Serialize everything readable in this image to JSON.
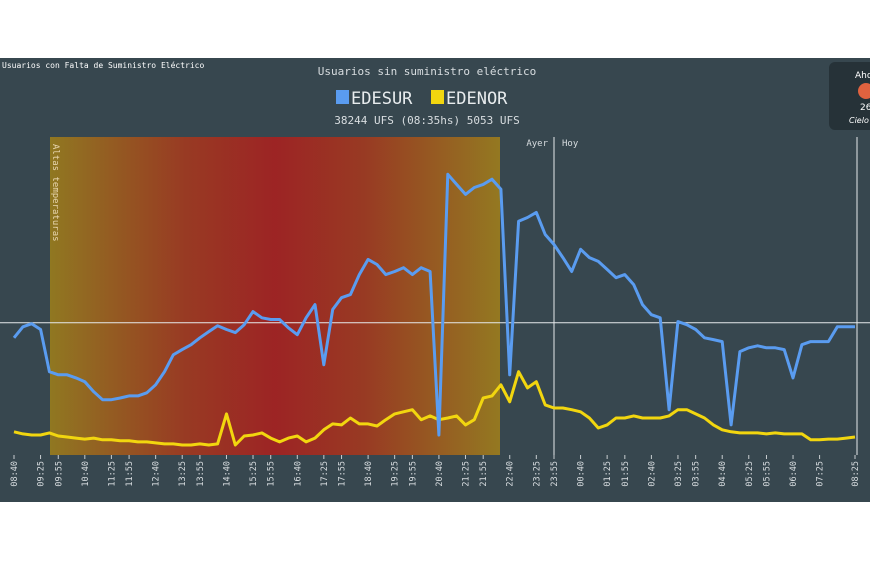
{
  "header": "Usuarios con Falta de Suministro Eléctrico",
  "widget": {
    "label": "Aho",
    "temperature": "26",
    "condition": "Cielo"
  },
  "chart_data": {
    "type": "line",
    "title": "Usuarios sin suministro eléctrico",
    "subtitle": "38244 UFS (08:35hs) 5053 UFS",
    "annotations": {
      "shaded": "Altas temperaturas",
      "before": "Ayer",
      "after": "Hoy"
    },
    "reference_line": 38244,
    "categories": [
      "08:40",
      null,
      null,
      "09:25",
      null,
      "09:55",
      null,
      null,
      "10:40",
      null,
      null,
      "11:25",
      null,
      "11:55",
      null,
      null,
      "12:40",
      null,
      null,
      "13:25",
      null,
      "13:55",
      null,
      null,
      "14:40",
      null,
      null,
      "15:25",
      null,
      "15:55",
      null,
      null,
      "16:40",
      null,
      null,
      "17:25",
      null,
      "17:55",
      null,
      null,
      "18:40",
      null,
      null,
      "19:25",
      null,
      "19:55",
      null,
      null,
      "20:40",
      null,
      null,
      "21:25",
      null,
      "21:55",
      null,
      null,
      "22:40",
      null,
      null,
      "23:25",
      null,
      "23:55",
      null,
      null,
      "00:40",
      null,
      null,
      "01:25",
      null,
      "01:55",
      null,
      null,
      "02:40",
      null,
      null,
      "03:25",
      null,
      "03:55",
      null,
      null,
      "04:40",
      null,
      null,
      "05:25",
      null,
      "05:55",
      null,
      null,
      "06:40",
      null,
      null,
      "07:25",
      null,
      null,
      null,
      "08:25"
    ],
    "series": [
      {
        "name": "EDESUR",
        "color": "#5a9cf0",
        "values": [
          33900,
          37100,
          38000,
          36300,
          24100,
          23200,
          23200,
          22300,
          21200,
          18300,
          16000,
          16000,
          16500,
          17100,
          17100,
          18000,
          20300,
          24100,
          29000,
          30500,
          31900,
          33900,
          35700,
          37400,
          36300,
          35400,
          37700,
          41500,
          39700,
          39200,
          39200,
          36800,
          34800,
          39700,
          43500,
          26100,
          42100,
          45500,
          46400,
          52200,
          56600,
          55100,
          52200,
          53100,
          54200,
          52200,
          54200,
          53100,
          5800,
          81200,
          78300,
          75400,
          77400,
          78300,
          79800,
          76900,
          23200,
          67600,
          68700,
          70200,
          63800,
          60900,
          57100,
          53100,
          59500,
          57100,
          56000,
          53700,
          51300,
          52200,
          49300,
          43500,
          40600,
          39700,
          13100,
          38600,
          37700,
          36300,
          33900,
          33400,
          32800,
          8700,
          29900,
          31000,
          31600,
          31000,
          31000,
          30500,
          22300,
          31900,
          32800,
          32800,
          32800,
          37100,
          37100,
          37100
        ]
      },
      {
        "name": "EDENOR",
        "color": "#f2d60f",
        "values": [
          6700,
          6100,
          5800,
          5800,
          6400,
          5500,
          5200,
          4900,
          4600,
          4900,
          4400,
          4400,
          4100,
          4100,
          3800,
          3800,
          3500,
          3200,
          3200,
          2900,
          2900,
          3200,
          2900,
          3200,
          11900,
          2900,
          5500,
          5800,
          6400,
          4900,
          3800,
          4900,
          5500,
          3800,
          4900,
          7300,
          9000,
          8700,
          10700,
          9000,
          9000,
          8400,
          10200,
          11900,
          12500,
          13100,
          10200,
          11300,
          10200,
          10700,
          11300,
          8700,
          10200,
          16500,
          17100,
          20300,
          15400,
          24100,
          19400,
          21200,
          14500,
          13600,
          13600,
          13100,
          12500,
          10700,
          7800,
          8700,
          10700,
          10700,
          11300,
          10700,
          10700,
          10700,
          11300,
          13100,
          13100,
          11900,
          10700,
          8700,
          7300,
          6700,
          6400,
          6400,
          6400,
          6100,
          6400,
          6100,
          6100,
          6100,
          4400,
          4400,
          4600,
          4600,
          4900,
          5200
        ]
      }
    ],
    "ylim": [
      0,
      92000
    ]
  }
}
